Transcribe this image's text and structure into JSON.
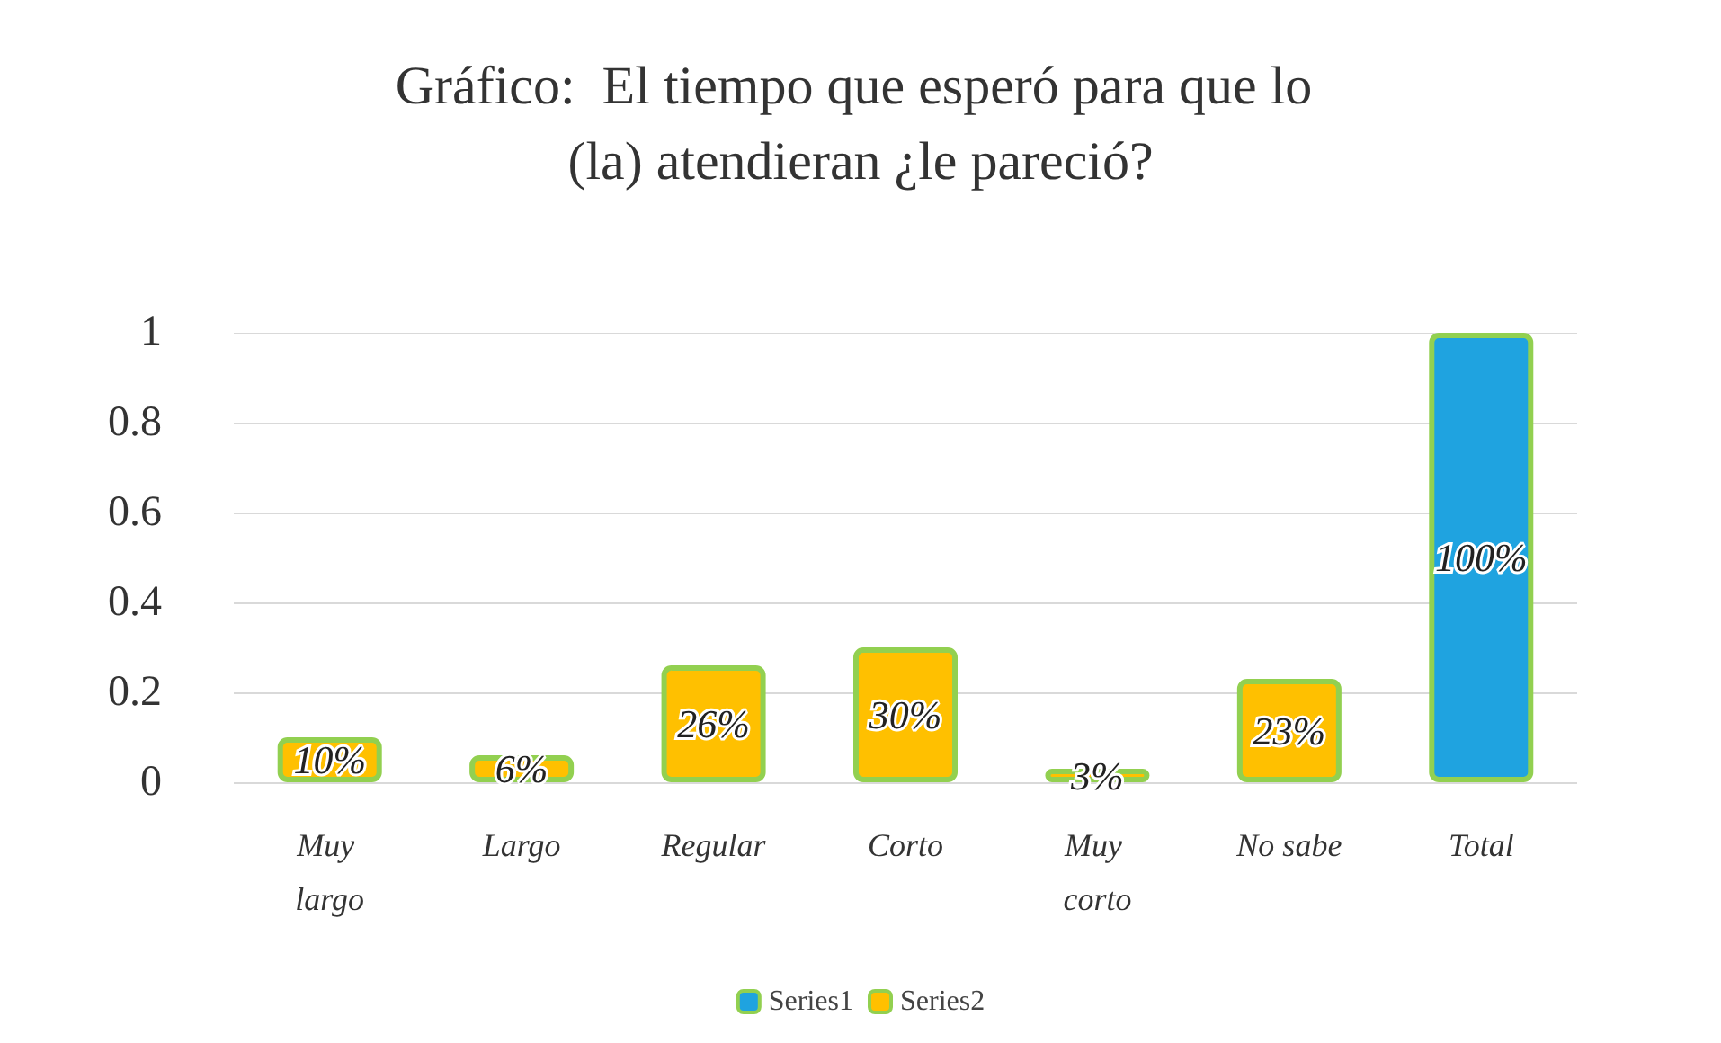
{
  "chart_data": {
    "type": "bar",
    "title": "Gráfico:  El tiempo que esperó para que lo (la) atendieran ¿le pareció?",
    "categories": [
      "Muy largo",
      "Largo",
      "Regular",
      "Corto",
      "Muy corto",
      "No sabe",
      "Total"
    ],
    "series": [
      {
        "name": "Series1",
        "color": "#1fa3e0",
        "values": [
          null,
          null,
          null,
          null,
          null,
          null,
          1
        ],
        "value_labels": [
          null,
          null,
          null,
          null,
          null,
          null,
          "100%"
        ]
      },
      {
        "name": "Series2",
        "color": "#ffc000",
        "values": [
          0.1,
          0.06,
          0.26,
          0.3,
          0.03,
          0.23,
          null
        ],
        "value_labels": [
          "10%",
          "6%",
          "26%",
          "30%",
          "3%",
          "23%",
          null
        ]
      }
    ],
    "stacked": true,
    "ylim": [
      0,
      1
    ],
    "yticks": [
      0,
      0.2,
      0.4,
      0.6,
      0.8,
      1
    ],
    "grid": "y",
    "legend": "bottom"
  }
}
